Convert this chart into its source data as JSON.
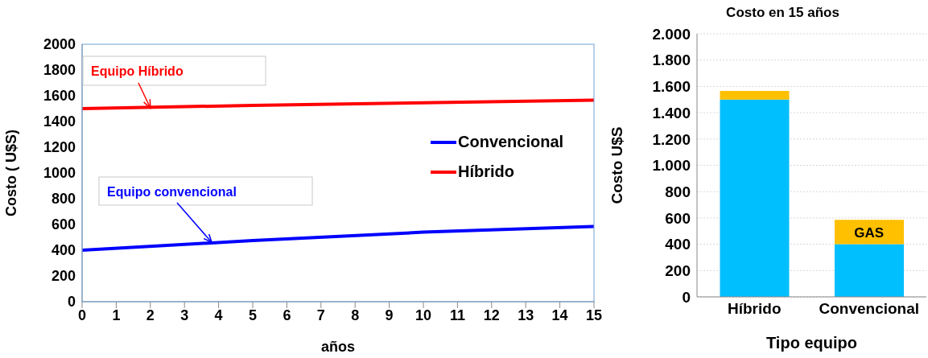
{
  "chart_data": [
    {
      "type": "line",
      "xlabel": "años",
      "ylabel": "Costo ( U$S)",
      "x": [
        0,
        5,
        10,
        15
      ],
      "series": [
        {
          "name": "Convencional",
          "color": "#0000ff",
          "values": [
            400,
            475,
            540,
            585
          ]
        },
        {
          "name": "Híbrido",
          "color": "#ff0000",
          "values": [
            1500,
            1525,
            1545,
            1565
          ]
        }
      ],
      "xlim": [
        0,
        15
      ],
      "xticks": [
        0,
        1,
        2,
        3,
        4,
        5,
        6,
        7,
        8,
        9,
        10,
        11,
        12,
        13,
        14,
        15
      ],
      "ylim": [
        0,
        2000
      ],
      "yticks": [
        0,
        200,
        400,
        600,
        800,
        1000,
        1200,
        1400,
        1600,
        1800,
        2000
      ],
      "grid": false,
      "legend": "right",
      "annotations": [
        {
          "text": "Equipo Híbrido",
          "x": 2,
          "y": 1505
        },
        {
          "text": "Equipo convencional",
          "x": 3.8,
          "y": 460
        }
      ]
    },
    {
      "type": "bar",
      "title": "Costo en 15 años",
      "xlabel": "Tipo equipo",
      "ylabel": "Costo U$S",
      "categories": [
        "Híbrido",
        "Convencional"
      ],
      "stacked": true,
      "series": [
        {
          "color": "#00bfff",
          "values": [
            1500,
            400
          ]
        },
        {
          "color": "#ffc000",
          "values": [
            65,
            185
          ]
        }
      ],
      "ylim": [
        0,
        2000
      ],
      "yticks": [
        0,
        200,
        400,
        600,
        800,
        {
          "value": 1000,
          "label": "1.000"
        },
        {
          "value": 1200,
          "label": "1.200"
        },
        {
          "value": 1400,
          "label": "1.400"
        },
        {
          "value": 1600,
          "label": "1.600"
        },
        {
          "value": 1800,
          "label": "1.800"
        },
        {
          "value": 2000,
          "label": "2.000"
        }
      ],
      "grid": "y",
      "annotations": [
        "GAS"
      ]
    }
  ]
}
